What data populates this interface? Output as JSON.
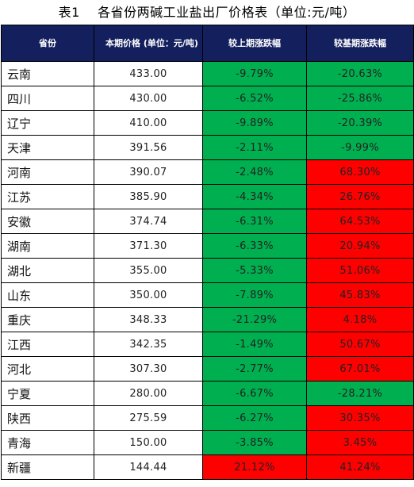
{
  "title": "表1    各省份两碱工业盐出厂价格表（单位:元/吨）",
  "headers": [
    "省份",
    "本期价格 (单位：元/吨)",
    "较上期涨跌幅",
    "较基期涨跌幅"
  ],
  "colors": {
    "header_bg": "#14205e",
    "up": "#ff0000",
    "down": "#00b050"
  },
  "rows": [
    {
      "province": "云南",
      "price": "433.00",
      "vs_prev": "-9.79%",
      "vs_prev_color": "down",
      "vs_base": "-20.63%",
      "vs_base_color": "down"
    },
    {
      "province": "四川",
      "price": "430.00",
      "vs_prev": "-6.52%",
      "vs_prev_color": "down",
      "vs_base": "-25.86%",
      "vs_base_color": "down"
    },
    {
      "province": "辽宁",
      "price": "410.00",
      "vs_prev": "-9.89%",
      "vs_prev_color": "down",
      "vs_base": "-20.39%",
      "vs_base_color": "down"
    },
    {
      "province": "天津",
      "price": "391.56",
      "vs_prev": "-2.11%",
      "vs_prev_color": "down",
      "vs_base": "-9.99%",
      "vs_base_color": "down"
    },
    {
      "province": "河南",
      "price": "390.07",
      "vs_prev": "-2.48%",
      "vs_prev_color": "down",
      "vs_base": "68.30%",
      "vs_base_color": "up"
    },
    {
      "province": "江苏",
      "price": "385.90",
      "vs_prev": "-4.34%",
      "vs_prev_color": "down",
      "vs_base": "26.76%",
      "vs_base_color": "up"
    },
    {
      "province": "安徽",
      "price": "374.74",
      "vs_prev": "-6.31%",
      "vs_prev_color": "down",
      "vs_base": "64.53%",
      "vs_base_color": "up"
    },
    {
      "province": "湖南",
      "price": "371.30",
      "vs_prev": "-6.33%",
      "vs_prev_color": "down",
      "vs_base": "20.94%",
      "vs_base_color": "up"
    },
    {
      "province": "湖北",
      "price": "355.00",
      "vs_prev": "-5.33%",
      "vs_prev_color": "down",
      "vs_base": "51.06%",
      "vs_base_color": "up"
    },
    {
      "province": "山东",
      "price": "350.00",
      "vs_prev": "-7.89%",
      "vs_prev_color": "down",
      "vs_base": "45.83%",
      "vs_base_color": "up"
    },
    {
      "province": "重庆",
      "price": "348.33",
      "vs_prev": "-21.29%",
      "vs_prev_color": "down",
      "vs_base": "4.18%",
      "vs_base_color": "up"
    },
    {
      "province": "江西",
      "price": "342.35",
      "vs_prev": "-1.49%",
      "vs_prev_color": "down",
      "vs_base": "50.67%",
      "vs_base_color": "up"
    },
    {
      "province": "河北",
      "price": "307.30",
      "vs_prev": "-2.77%",
      "vs_prev_color": "down",
      "vs_base": "67.01%",
      "vs_base_color": "up"
    },
    {
      "province": "宁夏",
      "price": "280.00",
      "vs_prev": "-6.67%",
      "vs_prev_color": "down",
      "vs_base": "-28.21%",
      "vs_base_color": "down"
    },
    {
      "province": "陕西",
      "price": "275.59",
      "vs_prev": "-6.27%",
      "vs_prev_color": "down",
      "vs_base": "30.35%",
      "vs_base_color": "up"
    },
    {
      "province": "青海",
      "price": "150.00",
      "vs_prev": "-3.85%",
      "vs_prev_color": "down",
      "vs_base": "3.45%",
      "vs_base_color": "up"
    },
    {
      "province": "新疆",
      "price": "144.44",
      "vs_prev": "21.12%",
      "vs_prev_color": "up",
      "vs_base": "41.24%",
      "vs_base_color": "up"
    }
  ]
}
